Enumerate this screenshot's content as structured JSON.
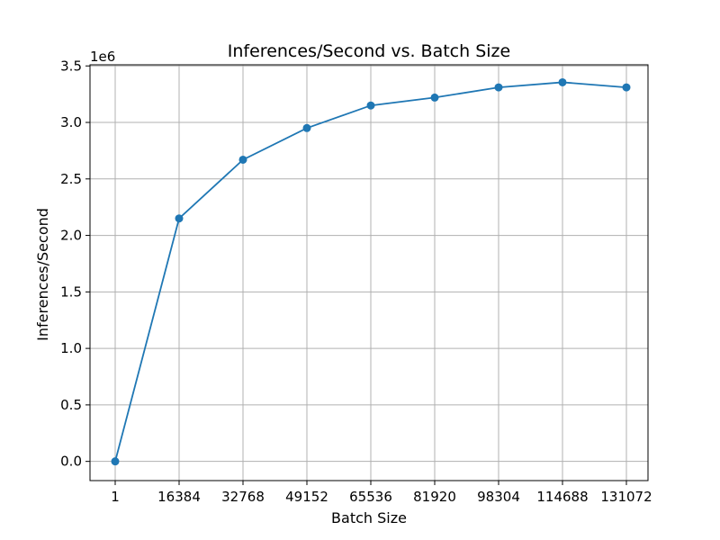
{
  "chart_data": {
    "type": "line",
    "title": "Inferences/Second vs. Batch Size",
    "xlabel": "Batch Size",
    "ylabel": "Inferences/Second",
    "y_offset_label": "1e6",
    "categories": [
      "1",
      "16384",
      "32768",
      "49152",
      "65536",
      "81920",
      "98304",
      "114688",
      "131072"
    ],
    "series": [
      {
        "values": [
          0,
          2150000,
          2670000,
          2950000,
          3150000,
          3220000,
          3310000,
          3355000,
          3310000
        ],
        "color": "#1f77b4"
      }
    ],
    "y_ticks": [
      0.0,
      0.5,
      1.0,
      1.5,
      2.0,
      2.5,
      3.0,
      3.5
    ],
    "y_tick_labels": [
      "0.0",
      "0.5",
      "1.0",
      "1.5",
      "2.0",
      "2.5",
      "3.0",
      "3.5"
    ],
    "ylim": [
      -170000,
      3510000
    ],
    "grid": true,
    "markers": "circle"
  }
}
